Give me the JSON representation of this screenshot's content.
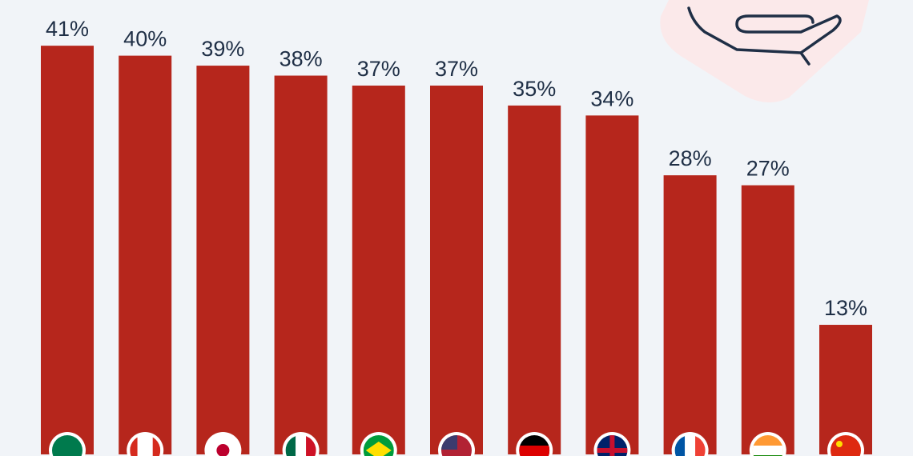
{
  "chart_data": {
    "type": "bar",
    "categories": [
      null,
      null,
      null,
      null,
      null,
      null,
      null,
      null,
      null,
      null,
      null
    ],
    "values": [
      41,
      40,
      39,
      38,
      37,
      37,
      35,
      34,
      28,
      27,
      13
    ],
    "value_labels": [
      "41%",
      "40%",
      "39%",
      "38%",
      "37%",
      "37%",
      "35%",
      "34%",
      "28%",
      "27%",
      "13%"
    ],
    "color": "#b6261c"
  }
}
